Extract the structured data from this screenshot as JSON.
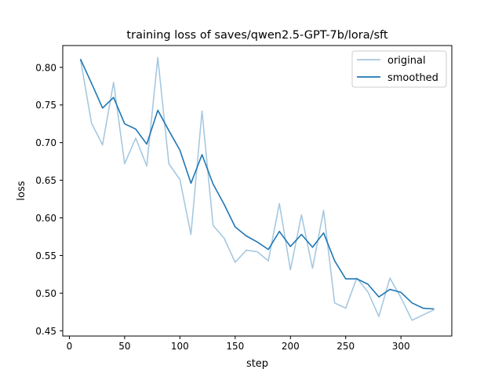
{
  "chart_data": {
    "type": "line",
    "title": "training loss of saves/qwen2.5-GPT-7b/lora/sft",
    "xlabel": "step",
    "ylabel": "loss",
    "xlim": [
      -6,
      346
    ],
    "ylim": [
      0.443,
      0.829
    ],
    "xticks": [
      0,
      50,
      100,
      150,
      200,
      250,
      300
    ],
    "yticks": [
      0.45,
      0.5,
      0.55,
      0.6,
      0.65,
      0.7,
      0.75,
      0.8
    ],
    "ytick_labels": [
      "0.45",
      "0.50",
      "0.55",
      "0.60",
      "0.65",
      "0.70",
      "0.75",
      "0.80"
    ],
    "grid": false,
    "legend_position": "top-right",
    "x": [
      10,
      20,
      30,
      40,
      50,
      60,
      70,
      80,
      90,
      100,
      110,
      120,
      130,
      140,
      150,
      160,
      170,
      180,
      190,
      200,
      210,
      220,
      230,
      240,
      250,
      260,
      270,
      280,
      290,
      300,
      310,
      320,
      330
    ],
    "series": [
      {
        "name": "original",
        "color": "#a6c8e0",
        "values": [
          0.811,
          0.726,
          0.697,
          0.78,
          0.672,
          0.706,
          0.669,
          0.813,
          0.672,
          0.651,
          0.578,
          0.742,
          0.59,
          0.573,
          0.541,
          0.557,
          0.555,
          0.543,
          0.619,
          0.531,
          0.604,
          0.533,
          0.61,
          0.487,
          0.48,
          0.52,
          0.502,
          0.469,
          0.52,
          0.494,
          0.464,
          0.471,
          0.478
        ]
      },
      {
        "name": "smoothed",
        "color": "#1f77b4",
        "values": [
          0.811,
          0.779,
          0.746,
          0.76,
          0.725,
          0.718,
          0.698,
          0.743,
          0.716,
          0.69,
          0.646,
          0.684,
          0.645,
          0.618,
          0.588,
          0.576,
          0.568,
          0.558,
          0.582,
          0.562,
          0.578,
          0.561,
          0.58,
          0.543,
          0.519,
          0.519,
          0.512,
          0.495,
          0.505,
          0.501,
          0.487,
          0.48,
          0.479
        ]
      }
    ]
  }
}
